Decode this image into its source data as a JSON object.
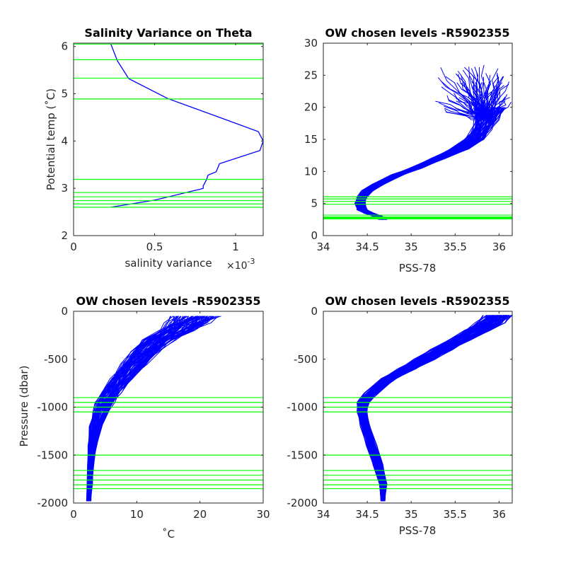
{
  "colors": {
    "profile": "#0000ff",
    "level": "#00ff00",
    "axis": "#262626"
  },
  "chart_data": [
    {
      "type": "line",
      "title": "Salinity Variance on Theta",
      "xlabel": "salinity variance",
      "xexponent_label": "×10",
      "xexponent_power": "-3",
      "ylabel": "Potential temp (˚C)",
      "xlim": [
        0,
        1.17
      ],
      "ylim": [
        2,
        6.07
      ],
      "xticks": [
        0,
        0.5,
        1
      ],
      "xtick_labels": [
        "0",
        "0.5",
        "1"
      ],
      "yticks": [
        2,
        3,
        4,
        5,
        6
      ],
      "ytick_labels": [
        "2",
        "3",
        "4",
        "5",
        "6"
      ],
      "series": [
        {
          "x": [
            0.23,
            0.5,
            0.72,
            0.78,
            0.8,
            0.8,
            0.82,
            0.83,
            0.88,
            0.9,
            1.15,
            1.17,
            1.14,
            0.9,
            0.58,
            0.34,
            0.27,
            0.23
          ],
          "y": [
            2.6,
            2.75,
            2.93,
            2.98,
            3.0,
            3.05,
            3.18,
            3.28,
            3.35,
            3.52,
            3.8,
            4.0,
            4.2,
            4.5,
            4.9,
            5.32,
            5.7,
            6.05
          ]
        }
      ],
      "hlines": [
        2.6,
        2.67,
        2.74,
        2.82,
        2.91,
        3.19,
        4.89,
        5.33,
        5.72,
        6.05
      ]
    },
    {
      "type": "line",
      "title": "OW chosen levels -R5902355",
      "xlabel": "PSS-78",
      "ylabel": "",
      "xlim": [
        34,
        36.15
      ],
      "ylim": [
        0,
        30
      ],
      "xticks": [
        34,
        34.5,
        35,
        35.5,
        36
      ],
      "xtick_labels": [
        "34",
        "34.5",
        "35",
        "35.5",
        "36"
      ],
      "yticks": [
        0,
        5,
        10,
        15,
        20,
        25,
        30
      ],
      "ytick_labels": [
        "0",
        "5",
        "10",
        "15",
        "20",
        "25",
        "30"
      ],
      "band": {
        "x": [
          34.68,
          34.62,
          34.52,
          34.44,
          34.42,
          34.44,
          34.5,
          34.62,
          34.85,
          35.05,
          35.3,
          35.55,
          35.72,
          35.8,
          35.85,
          35.9
        ],
        "y": [
          2.5,
          3.0,
          3.5,
          4.0,
          5.0,
          6.0,
          7.0,
          8.0,
          9.5,
          10.5,
          12.0,
          13.5,
          15.0,
          16.5,
          18.0,
          20.0
        ],
        "halfwidth": [
          0.04,
          0.05,
          0.05,
          0.05,
          0.05,
          0.05,
          0.06,
          0.06,
          0.06,
          0.06,
          0.07,
          0.09,
          0.1,
          0.1,
          0.12,
          0.15
        ],
        "n": 70
      },
      "fan": {
        "origin_x": 35.85,
        "origin_y": 18.0,
        "xmin": 35.3,
        "xmax": 36.15,
        "ymin": 19.0,
        "ymax": 26.5,
        "n": 90
      },
      "hlines": [
        2.6,
        2.67,
        2.74,
        2.82,
        2.91,
        3.19,
        4.89,
        5.33,
        5.72,
        6.05
      ]
    },
    {
      "type": "line",
      "title": "OW chosen levels -R5902355",
      "xlabel": "˚C",
      "ylabel": "Pressure (dbar)",
      "xlim": [
        0,
        30
      ],
      "ylim": [
        -2000,
        0
      ],
      "xticks": [
        0,
        10,
        20,
        30
      ],
      "xtick_labels": [
        "0",
        "10",
        "20",
        "30"
      ],
      "yticks": [
        -2000,
        -1500,
        -1000,
        -500,
        0
      ],
      "ytick_labels": [
        "-2000",
        "-1500",
        "-1000",
        "-500",
        "0"
      ],
      "band": {
        "x": [
          2.4,
          2.5,
          2.7,
          3.0,
          3.5,
          4.2,
          5.0,
          6.0,
          7.5,
          9.5,
          11.5,
          13.5,
          16.0,
          18.0,
          19.5
        ],
        "y": [
          -1980,
          -1800,
          -1600,
          -1400,
          -1200,
          -1050,
          -950,
          -850,
          -700,
          -550,
          -420,
          -300,
          -200,
          -120,
          -50
        ],
        "halfwidth": [
          0.3,
          0.4,
          0.4,
          0.6,
          0.9,
          1.1,
          1.3,
          1.4,
          1.6,
          1.8,
          2.0,
          2.3,
          2.6,
          3.0,
          3.5
        ],
        "n": 70
      },
      "hlines": [
        -900,
        -950,
        -1000,
        -1050,
        -1500,
        -1660,
        -1710,
        -1760,
        -1810,
        -1850
      ]
    },
    {
      "type": "line",
      "title": "OW chosen levels -R5902355",
      "xlabel": "PSS-78",
      "ylabel": "",
      "xlim": [
        34,
        36.15
      ],
      "ylim": [
        -2000,
        0
      ],
      "xticks": [
        34,
        34.5,
        35,
        35.5,
        36
      ],
      "xtick_labels": [
        "34",
        "34.5",
        "35",
        "35.5",
        "36"
      ],
      "yticks": [
        -2000,
        -1500,
        -1000,
        -500,
        0
      ],
      "ytick_labels": [
        "-2000",
        "-1500",
        "-1000",
        "-500",
        "0"
      ],
      "band": {
        "x": [
          34.68,
          34.68,
          34.62,
          34.55,
          34.48,
          34.44,
          34.45,
          34.55,
          34.75,
          34.95,
          35.15,
          35.35,
          35.55,
          35.75,
          35.9,
          36.0
        ],
        "y": [
          -1980,
          -1800,
          -1600,
          -1400,
          -1200,
          -1050,
          -950,
          -850,
          -700,
          -600,
          -500,
          -400,
          -300,
          -200,
          -120,
          -40
        ],
        "halfwidth": [
          0.02,
          0.04,
          0.05,
          0.05,
          0.05,
          0.05,
          0.06,
          0.07,
          0.08,
          0.09,
          0.1,
          0.11,
          0.12,
          0.13,
          0.14,
          0.15
        ],
        "n": 70
      },
      "hlines": [
        -900,
        -950,
        -1000,
        -1050,
        -1500,
        -1660,
        -1710,
        -1760,
        -1810,
        -1850
      ]
    }
  ]
}
